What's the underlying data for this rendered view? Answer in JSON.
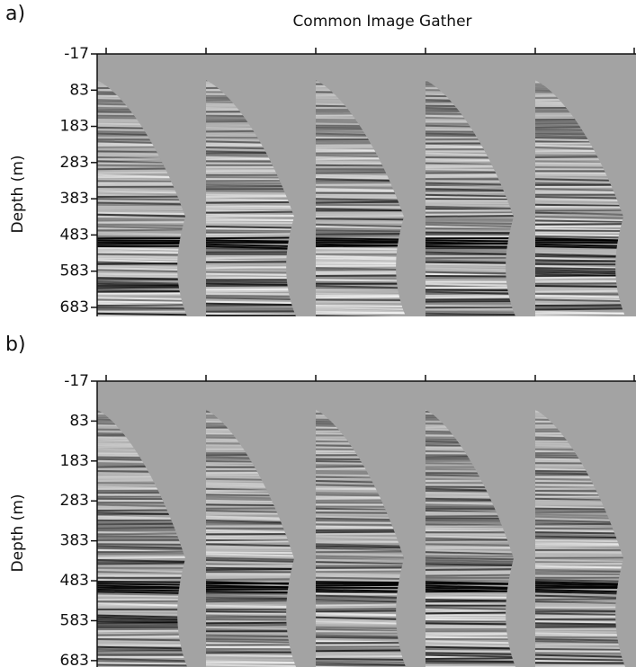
{
  "title": "Common Image Gather",
  "panels": [
    {
      "label": "a)",
      "ylabel": "Depth (m)",
      "ylim": [
        -17,
        708
      ],
      "yticks": [
        -17,
        83,
        183,
        283,
        383,
        483,
        583,
        683
      ]
    },
    {
      "label": "b)",
      "ylabel": "Depth (m)",
      "ylim": [
        -17,
        699
      ],
      "yticks": [
        -17,
        83,
        183,
        283,
        383,
        483,
        583,
        683
      ]
    }
  ]
}
